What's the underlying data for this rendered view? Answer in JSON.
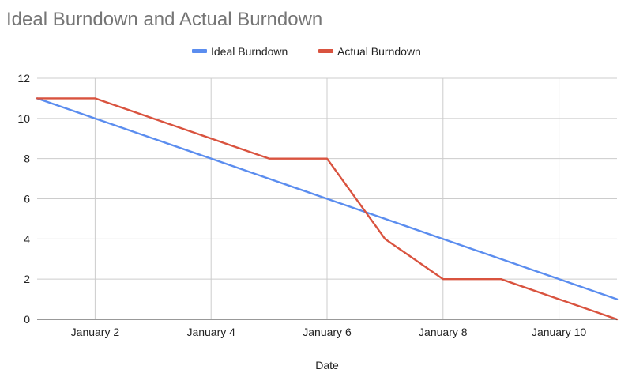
{
  "chart_data": {
    "type": "line",
    "title": "Ideal Burndown and Actual Burndown",
    "xlabel": "Date",
    "ylabel": "",
    "x": [
      "January 1",
      "January 2",
      "January 3",
      "January 4",
      "January 5",
      "January 6",
      "January 7",
      "January 8",
      "January 9",
      "January 10",
      "January 11"
    ],
    "x_tick_labels": [
      "January 2",
      "January 4",
      "January 6",
      "January 8",
      "January 10"
    ],
    "ylim": [
      0,
      12
    ],
    "y_ticks": [
      0,
      2,
      4,
      6,
      8,
      10,
      12
    ],
    "grid": true,
    "legend_position": "top-center",
    "series": [
      {
        "name": "Ideal Burndown",
        "color": "#5b8def",
        "values": [
          11,
          10,
          9,
          8,
          7,
          6,
          5,
          4,
          3,
          2,
          1
        ]
      },
      {
        "name": "Actual Burndown",
        "color": "#d9533f",
        "values": [
          11,
          11,
          10,
          9,
          8,
          8,
          4,
          2,
          2,
          1,
          0
        ]
      }
    ]
  }
}
